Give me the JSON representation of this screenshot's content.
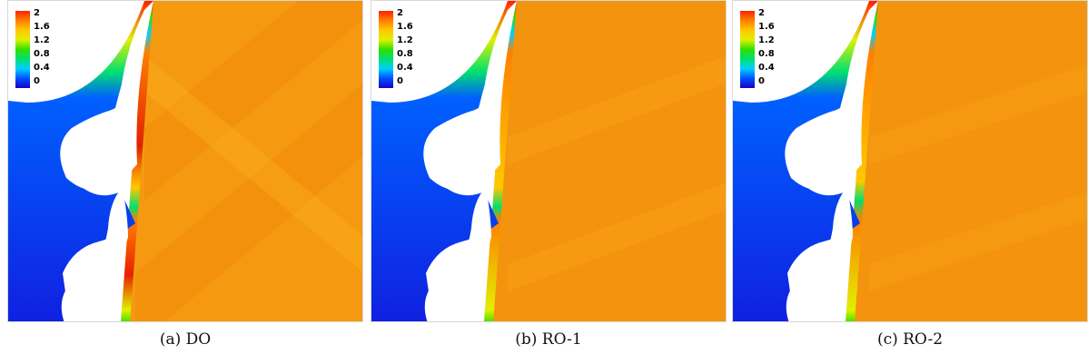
{
  "colorbar": {
    "ticks": [
      "2",
      "1.6",
      "1.2",
      "0.8",
      "0.4",
      "0"
    ],
    "range": [
      0,
      2
    ],
    "colors": [
      "#1a00c8",
      "#0050ff",
      "#00d0ff",
      "#00e070",
      "#30e000",
      "#e0f000",
      "#ffc800",
      "#ff8000",
      "#ff2000"
    ]
  },
  "panels": [
    {
      "caption": "(a) DO"
    },
    {
      "caption": "(b) RO-1"
    },
    {
      "caption": "(c) RO-2"
    }
  ]
}
